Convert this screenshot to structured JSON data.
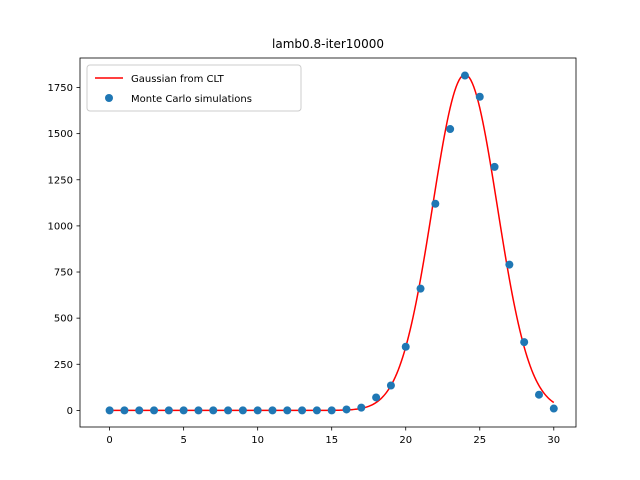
{
  "chart_data": {
    "type": "scatter",
    "title": "lamb0.8-iter10000",
    "xlabel": "",
    "ylabel": "",
    "xlim": [
      -2,
      31.5
    ],
    "ylim": [
      -90,
      1910
    ],
    "x_ticks": [
      0,
      5,
      10,
      15,
      20,
      25,
      30
    ],
    "y_ticks": [
      0,
      250,
      500,
      750,
      1000,
      1250,
      1500,
      1750
    ],
    "grid": false,
    "legend_position": "top-left",
    "series": [
      {
        "name": "Gaussian from CLT",
        "kind": "line",
        "color": "#ff0000",
        "gaussian": {
          "mean": 24.0,
          "std": 2.19,
          "peak": 1820
        },
        "x_range": [
          0,
          30
        ]
      },
      {
        "name": "Monte Carlo simulations",
        "kind": "scatter",
        "color": "#1f77b4",
        "x": [
          0,
          1,
          2,
          3,
          4,
          5,
          6,
          7,
          8,
          9,
          10,
          11,
          12,
          13,
          14,
          15,
          16,
          17,
          18,
          19,
          20,
          21,
          22,
          23,
          24,
          25,
          26,
          27,
          28,
          29,
          30
        ],
        "y": [
          0,
          0,
          0,
          0,
          0,
          0,
          0,
          0,
          0,
          0,
          0,
          0,
          0,
          0,
          0,
          0,
          5,
          15,
          70,
          135,
          345,
          660,
          1120,
          1525,
          1815,
          1700,
          1320,
          790,
          370,
          85,
          10
        ]
      }
    ]
  }
}
